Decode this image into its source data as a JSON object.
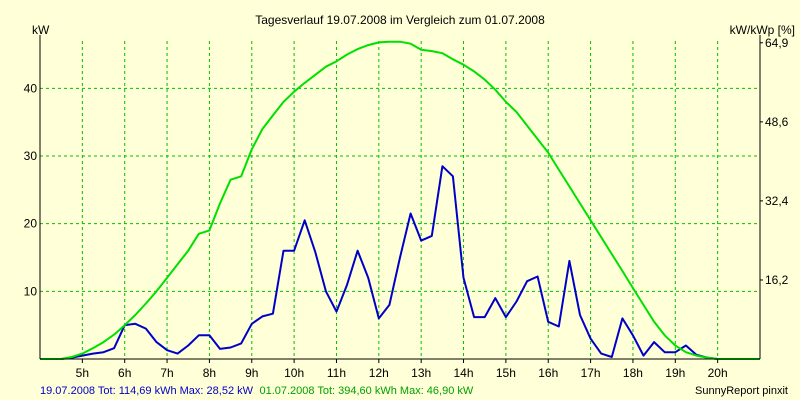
{
  "chart_data": {
    "type": "line",
    "title": "Tagesverlauf 19.07.2008 im Vergleich zum 01.07.2008",
    "ylabel_left": "kW",
    "ylabel_right": "kW/kWp [%]",
    "xlim": [
      4.0,
      21.0
    ],
    "ylim": [
      0,
      47
    ],
    "grid": true,
    "x_ticks": [
      5,
      6,
      7,
      8,
      9,
      10,
      11,
      12,
      13,
      14,
      15,
      16,
      17,
      18,
      19,
      20
    ],
    "x_tick_labels": [
      "5h",
      "6h",
      "7h",
      "8h",
      "9h",
      "10h",
      "11h",
      "12h",
      "13h",
      "14h",
      "15h",
      "16h",
      "17h",
      "18h",
      "19h",
      "20h"
    ],
    "y_ticks_left": [
      10,
      20,
      30,
      40
    ],
    "y_tick_labels_left": [
      "10",
      "20",
      "30",
      "40"
    ],
    "y_ticks_right": [
      11.68,
      23.37,
      35.05,
      46.74
    ],
    "y_tick_labels_right": [
      "16,2",
      "32,4",
      "48,6",
      "64,9"
    ],
    "series": [
      {
        "name": "19.07.2008",
        "color": "#0000c8",
        "points": [
          [
            4.0,
            0
          ],
          [
            4.5,
            0
          ],
          [
            4.75,
            0.2
          ],
          [
            5.0,
            0.5
          ],
          [
            5.25,
            0.8
          ],
          [
            5.5,
            1.0
          ],
          [
            5.75,
            1.6
          ],
          [
            6.0,
            5.0
          ],
          [
            6.25,
            5.2
          ],
          [
            6.5,
            4.5
          ],
          [
            6.75,
            2.5
          ],
          [
            7.0,
            1.3
          ],
          [
            7.25,
            0.8
          ],
          [
            7.5,
            2.0
          ],
          [
            7.75,
            3.5
          ],
          [
            8.0,
            3.5
          ],
          [
            8.25,
            1.5
          ],
          [
            8.5,
            1.7
          ],
          [
            8.75,
            2.3
          ],
          [
            9.0,
            5.2
          ],
          [
            9.25,
            6.3
          ],
          [
            9.5,
            6.7
          ],
          [
            9.75,
            16.0
          ],
          [
            10.0,
            16.0
          ],
          [
            10.25,
            20.5
          ],
          [
            10.5,
            15.8
          ],
          [
            10.75,
            10.0
          ],
          [
            11.0,
            7.0
          ],
          [
            11.25,
            11.0
          ],
          [
            11.5,
            16.0
          ],
          [
            11.75,
            12.0
          ],
          [
            12.0,
            6.0
          ],
          [
            12.25,
            8.0
          ],
          [
            12.5,
            15.0
          ],
          [
            12.75,
            21.5
          ],
          [
            13.0,
            17.5
          ],
          [
            13.25,
            18.2
          ],
          [
            13.5,
            28.5
          ],
          [
            13.75,
            27.0
          ],
          [
            14.0,
            12.0
          ],
          [
            14.25,
            6.2
          ],
          [
            14.5,
            6.2
          ],
          [
            14.75,
            9.0
          ],
          [
            15.0,
            6.2
          ],
          [
            15.25,
            8.5
          ],
          [
            15.5,
            11.5
          ],
          [
            15.75,
            12.2
          ],
          [
            16.0,
            5.5
          ],
          [
            16.25,
            4.8
          ],
          [
            16.5,
            14.5
          ],
          [
            16.75,
            6.5
          ],
          [
            17.0,
            3.0
          ],
          [
            17.25,
            0.8
          ],
          [
            17.5,
            0.3
          ],
          [
            17.75,
            6.0
          ],
          [
            18.0,
            3.5
          ],
          [
            18.25,
            0.5
          ],
          [
            18.5,
            2.5
          ],
          [
            18.75,
            1.0
          ],
          [
            19.0,
            1.0
          ],
          [
            19.25,
            2.0
          ],
          [
            19.5,
            0.6
          ],
          [
            19.75,
            0.2
          ],
          [
            20.0,
            0
          ],
          [
            20.5,
            0
          ],
          [
            21.0,
            0
          ]
        ]
      },
      {
        "name": "01.07.2008",
        "color": "#00e000",
        "points": [
          [
            4.0,
            0
          ],
          [
            4.5,
            0
          ],
          [
            4.75,
            0.3
          ],
          [
            5.0,
            0.8
          ],
          [
            5.25,
            1.6
          ],
          [
            5.5,
            2.5
          ],
          [
            5.75,
            3.6
          ],
          [
            6.0,
            5.0
          ],
          [
            6.25,
            6.5
          ],
          [
            6.5,
            8.2
          ],
          [
            6.75,
            10.0
          ],
          [
            7.0,
            12.0
          ],
          [
            7.25,
            14.0
          ],
          [
            7.5,
            16.0
          ],
          [
            7.75,
            18.5
          ],
          [
            8.0,
            19.0
          ],
          [
            8.25,
            23.0
          ],
          [
            8.5,
            26.5
          ],
          [
            8.75,
            27.0
          ],
          [
            9.0,
            31.0
          ],
          [
            9.25,
            34.0
          ],
          [
            9.5,
            36.0
          ],
          [
            9.75,
            38.0
          ],
          [
            10.0,
            39.5
          ],
          [
            10.25,
            40.8
          ],
          [
            10.5,
            42.0
          ],
          [
            10.75,
            43.2
          ],
          [
            11.0,
            44.0
          ],
          [
            11.25,
            45.0
          ],
          [
            11.5,
            45.8
          ],
          [
            11.75,
            46.4
          ],
          [
            12.0,
            46.8
          ],
          [
            12.25,
            46.9
          ],
          [
            12.5,
            46.9
          ],
          [
            12.75,
            46.6
          ],
          [
            13.0,
            45.7
          ],
          [
            13.25,
            45.5
          ],
          [
            13.5,
            45.2
          ],
          [
            13.75,
            44.3
          ],
          [
            14.0,
            43.5
          ],
          [
            14.25,
            42.5
          ],
          [
            14.5,
            41.3
          ],
          [
            14.75,
            39.8
          ],
          [
            15.0,
            38.0
          ],
          [
            15.25,
            36.5
          ],
          [
            15.5,
            34.5
          ],
          [
            15.75,
            32.5
          ],
          [
            16.0,
            30.5
          ],
          [
            16.25,
            28.0
          ],
          [
            16.5,
            25.5
          ],
          [
            16.75,
            23.0
          ],
          [
            17.0,
            20.5
          ],
          [
            17.25,
            18.0
          ],
          [
            17.5,
            15.5
          ],
          [
            17.75,
            13.0
          ],
          [
            18.0,
            10.5
          ],
          [
            18.25,
            8.0
          ],
          [
            18.5,
            5.5
          ],
          [
            18.75,
            3.5
          ],
          [
            19.0,
            2.0
          ],
          [
            19.25,
            1.0
          ],
          [
            19.5,
            0.5
          ],
          [
            19.75,
            0.2
          ],
          [
            20.0,
            0
          ],
          [
            21.0,
            0
          ]
        ]
      }
    ]
  },
  "footer": {
    "series1": "19.07.2008 Tot: 114,69 kWh Max: 28,52 kW",
    "series2": "01.07.2008 Tot: 394,60 kWh Max: 46,90 kW",
    "credit": "SunnyReport pinxit"
  },
  "colors": {
    "background": "#ffffd8",
    "grid": "#00c000",
    "series1": "#0000c8",
    "series2": "#00e000"
  }
}
